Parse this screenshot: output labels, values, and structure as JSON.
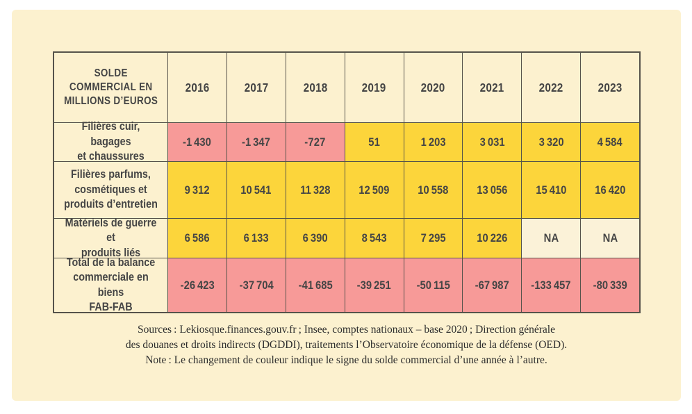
{
  "colors": {
    "page_background": "#FFFFFF",
    "panel_background": "#FCF1CF",
    "positive_cell": "#FCD53B",
    "negative_cell": "#F79A98",
    "na_cell": "#FBF2D8",
    "grid_border": "#56534B",
    "table_text": "#454545"
  },
  "table": {
    "header": {
      "title": "SOLDE\nCOMMERCIAL EN\nMILLIONS D’EUROS",
      "years": [
        "2016",
        "2017",
        "2018",
        "2019",
        "2020",
        "2021",
        "2022",
        "2023"
      ]
    },
    "rows": [
      {
        "label": "Filières cuir, bagages\net chaussures",
        "values": [
          "-1 430",
          "-1 347",
          "-727",
          "51",
          "1 203",
          "3 031",
          "3 320",
          "4 584"
        ],
        "signs": [
          "neg",
          "neg",
          "neg",
          "pos",
          "pos",
          "pos",
          "pos",
          "pos"
        ]
      },
      {
        "label": "Filières parfums,\ncosmétiques et\nproduits d’entretien",
        "values": [
          "9 312",
          "10 541",
          "11 328",
          "12 509",
          "10 558",
          "13 056",
          "15 410",
          "16 420"
        ],
        "signs": [
          "pos",
          "pos",
          "pos",
          "pos",
          "pos",
          "pos",
          "pos",
          "pos"
        ]
      },
      {
        "label": "Matériels de guerre et\nproduits liés",
        "values": [
          "6 586",
          "6 133",
          "6 390",
          "8 543",
          "7 295",
          "10 226",
          "NA",
          "NA"
        ],
        "signs": [
          "pos",
          "pos",
          "pos",
          "pos",
          "pos",
          "pos",
          "na",
          "na"
        ]
      },
      {
        "label": "Total de la balance\ncommerciale en biens\nFAB-FAB",
        "values": [
          "-26 423",
          "-37 704",
          "-41 685",
          "-39 251",
          "-50 115",
          "-67 987",
          "-133 457",
          "-80 339"
        ],
        "signs": [
          "neg",
          "neg",
          "neg",
          "neg",
          "neg",
          "neg",
          "neg",
          "neg"
        ]
      }
    ]
  },
  "footer": {
    "line1": "Sources : Lekiosque.finances.gouv.fr ; Insee, comptes nationaux – base 2020 ; Direction générale",
    "line2": "des douanes et droits indirects (DGDDI), traitements l’Observatoire économique de la défense (OED).",
    "line3": "Note : Le changement de couleur indique le signe du solde commercial d’une année à l’autre."
  },
  "chart_data": {
    "type": "table",
    "title": "Solde commercial en millions d’euros",
    "categories": [
      "2016",
      "2017",
      "2018",
      "2019",
      "2020",
      "2021",
      "2022",
      "2023"
    ],
    "series": [
      {
        "name": "Filières cuir, bagages et chaussures",
        "values": [
          -1430,
          -1347,
          -727,
          51,
          1203,
          3031,
          3320,
          4584
        ]
      },
      {
        "name": "Filières parfums, cosmétiques et produits d’entretien",
        "values": [
          9312,
          10541,
          11328,
          12509,
          10558,
          13056,
          15410,
          16420
        ]
      },
      {
        "name": "Matériels de guerre et produits liés",
        "values": [
          6586,
          6133,
          6390,
          8543,
          7295,
          10226,
          null,
          null
        ]
      },
      {
        "name": "Total de la balance commerciale en biens FAB-FAB",
        "values": [
          -26423,
          -37704,
          -41685,
          -39251,
          -50115,
          -67987,
          -133457,
          -80339
        ]
      }
    ],
    "cell_color_legend": {
      "pos": "yellow = solde positif",
      "neg": "rose = solde négatif",
      "na": "NA = non disponible"
    }
  }
}
